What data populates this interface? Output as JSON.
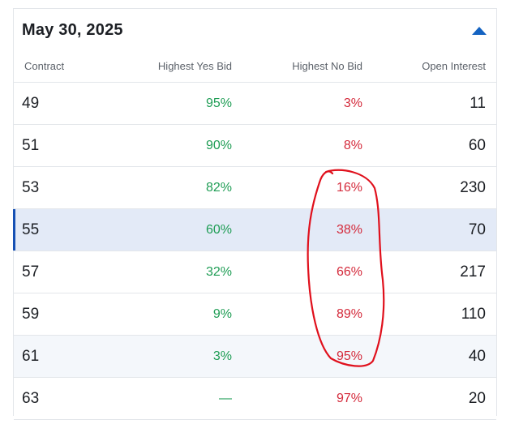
{
  "header": {
    "date": "May 30, 2025",
    "collapse_icon": "caret-up-icon",
    "accent": "#1463c2"
  },
  "columns": {
    "contract": "Contract",
    "yes_bid": "Highest Yes Bid",
    "no_bid": "Highest No Bid",
    "open_interest": "Open Interest"
  },
  "colors": {
    "yes": "#1f9d55",
    "no": "#d42a3b",
    "selected_row": "#e3eaf7",
    "selected_bar": "#1650b4",
    "annotation": "#e0101c"
  },
  "rows": [
    {
      "contract": "49",
      "yes": "95%",
      "no": "3%",
      "oi": "11"
    },
    {
      "contract": "51",
      "yes": "90%",
      "no": "8%",
      "oi": "60"
    },
    {
      "contract": "53",
      "yes": "82%",
      "no": "16%",
      "oi": "230"
    },
    {
      "contract": "55",
      "yes": "60%",
      "no": "38%",
      "oi": "70"
    },
    {
      "contract": "57",
      "yes": "32%",
      "no": "66%",
      "oi": "217"
    },
    {
      "contract": "59",
      "yes": "9%",
      "no": "89%",
      "oi": "110"
    },
    {
      "contract": "61",
      "yes": "3%",
      "no": "95%",
      "oi": "40"
    },
    {
      "contract": "63",
      "yes": "—",
      "no": "97%",
      "oi": "20"
    }
  ],
  "selected_contract": "55"
}
